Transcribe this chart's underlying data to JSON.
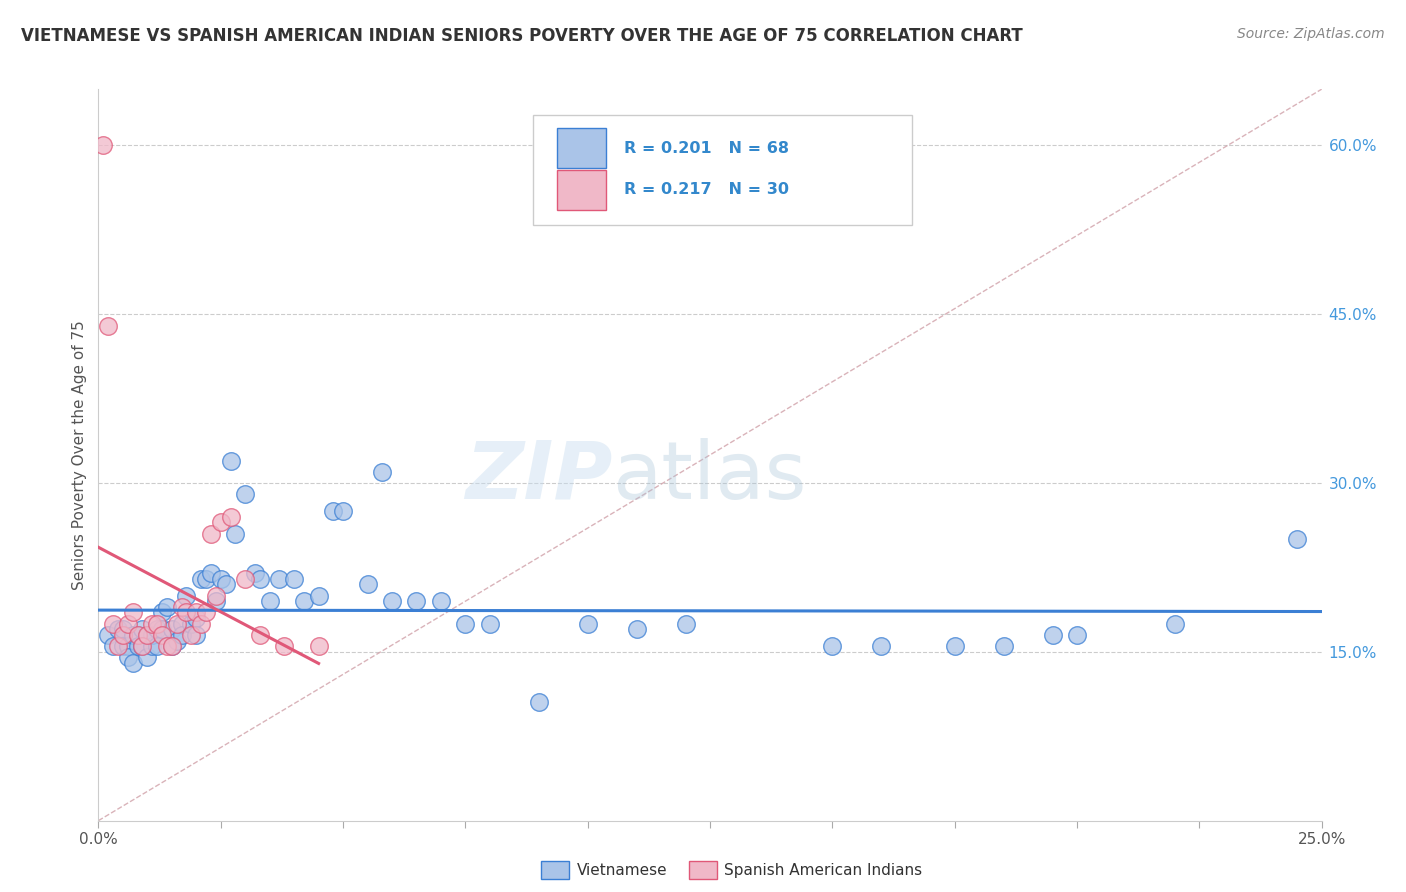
{
  "title": "VIETNAMESE VS SPANISH AMERICAN INDIAN SENIORS POVERTY OVER THE AGE OF 75 CORRELATION CHART",
  "source": "Source: ZipAtlas.com",
  "ylabel": "Seniors Poverty Over the Age of 75",
  "ylabel_right_ticks": [
    "15.0%",
    "30.0%",
    "45.0%",
    "60.0%"
  ],
  "ylabel_right_vals": [
    0.15,
    0.3,
    0.45,
    0.6
  ],
  "xlim": [
    0.0,
    0.25
  ],
  "ylim": [
    0.0,
    0.65
  ],
  "color_vietnamese": "#aac4e8",
  "color_spanish": "#f0b8c8",
  "color_line_vietnamese": "#3b7fd4",
  "color_line_spanish": "#e05878",
  "color_dashed": "#c8a0a8",
  "watermark_zip": "ZIP",
  "watermark_atlas": "atlas",
  "vietnamese_x": [
    0.002,
    0.003,
    0.004,
    0.005,
    0.005,
    0.006,
    0.006,
    0.007,
    0.007,
    0.008,
    0.008,
    0.009,
    0.009,
    0.01,
    0.01,
    0.011,
    0.011,
    0.012,
    0.012,
    0.013,
    0.013,
    0.014,
    0.015,
    0.015,
    0.016,
    0.017,
    0.017,
    0.018,
    0.019,
    0.02,
    0.02,
    0.021,
    0.022,
    0.023,
    0.024,
    0.025,
    0.026,
    0.027,
    0.028,
    0.03,
    0.032,
    0.033,
    0.035,
    0.037,
    0.04,
    0.042,
    0.045,
    0.048,
    0.05,
    0.055,
    0.058,
    0.06,
    0.065,
    0.07,
    0.075,
    0.08,
    0.09,
    0.1,
    0.11,
    0.12,
    0.15,
    0.16,
    0.175,
    0.185,
    0.195,
    0.2,
    0.22,
    0.245
  ],
  "vietnamese_y": [
    0.165,
    0.155,
    0.17,
    0.17,
    0.155,
    0.155,
    0.145,
    0.165,
    0.14,
    0.165,
    0.155,
    0.17,
    0.155,
    0.165,
    0.145,
    0.155,
    0.165,
    0.17,
    0.155,
    0.185,
    0.17,
    0.19,
    0.155,
    0.17,
    0.16,
    0.175,
    0.165,
    0.2,
    0.175,
    0.18,
    0.165,
    0.215,
    0.215,
    0.22,
    0.195,
    0.215,
    0.21,
    0.32,
    0.255,
    0.29,
    0.22,
    0.215,
    0.195,
    0.215,
    0.215,
    0.195,
    0.2,
    0.275,
    0.275,
    0.21,
    0.31,
    0.195,
    0.195,
    0.195,
    0.175,
    0.175,
    0.105,
    0.175,
    0.17,
    0.175,
    0.155,
    0.155,
    0.155,
    0.155,
    0.165,
    0.165,
    0.175,
    0.25
  ],
  "spanish_x": [
    0.001,
    0.002,
    0.003,
    0.004,
    0.005,
    0.006,
    0.007,
    0.008,
    0.009,
    0.01,
    0.011,
    0.012,
    0.013,
    0.014,
    0.015,
    0.016,
    0.017,
    0.018,
    0.019,
    0.02,
    0.021,
    0.022,
    0.023,
    0.024,
    0.025,
    0.027,
    0.03,
    0.033,
    0.038,
    0.045
  ],
  "spanish_y": [
    0.6,
    0.44,
    0.175,
    0.155,
    0.165,
    0.175,
    0.185,
    0.165,
    0.155,
    0.165,
    0.175,
    0.175,
    0.165,
    0.155,
    0.155,
    0.175,
    0.19,
    0.185,
    0.165,
    0.185,
    0.175,
    0.185,
    0.255,
    0.2,
    0.265,
    0.27,
    0.215,
    0.165,
    0.155,
    0.155
  ]
}
